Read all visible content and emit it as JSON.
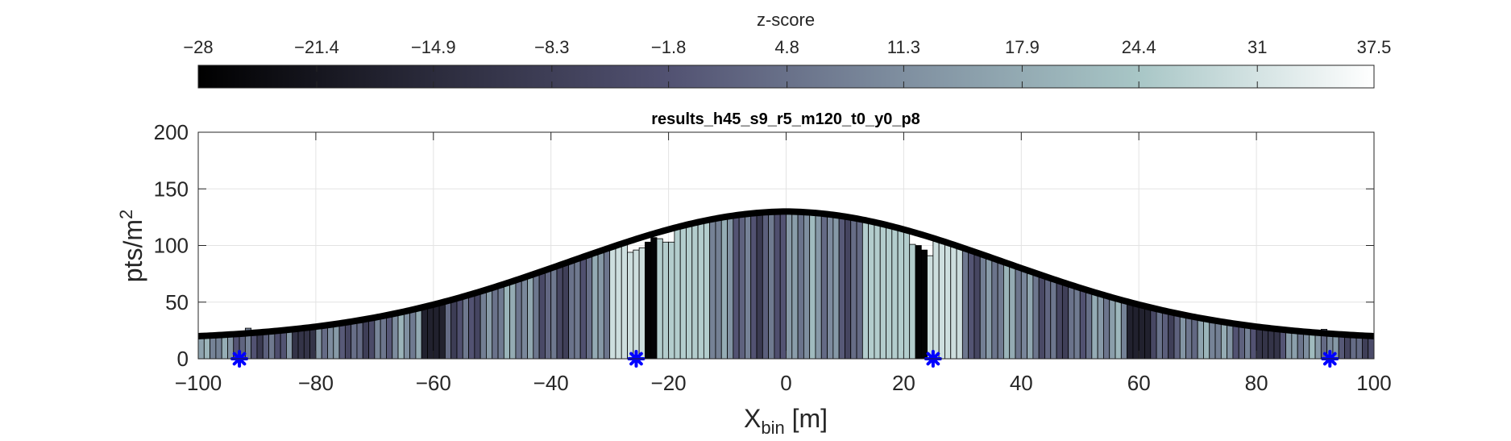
{
  "chart_data": {
    "type": "bar",
    "title": "results_h45_s9_r5_m120_t0_y0_p8",
    "xlabel": "X",
    "xlabel_subscript": "bin",
    "xlabel_unit": " [m]",
    "ylabel": "pts/m",
    "ylabel_superscript": "2",
    "xlim": [
      -100,
      100
    ],
    "ylim": [
      0,
      200
    ],
    "x_ticks": [
      -100,
      -80,
      -60,
      -40,
      -20,
      0,
      20,
      40,
      60,
      80,
      100
    ],
    "x_tick_labels": [
      "−100",
      "−80",
      "−60",
      "−40",
      "−20",
      "0",
      "20",
      "40",
      "60",
      "80",
      "100"
    ],
    "y_ticks": [
      0,
      50,
      100,
      150,
      200
    ],
    "y_tick_labels": [
      "0",
      "50",
      "100",
      "150",
      "200"
    ],
    "grid": true,
    "bin_width": 1,
    "bars_description": "one bar per 1 m bin; height follows the model curve with small deviations",
    "bars_x_start": -100,
    "bars_x_end": 99,
    "bar_height_overrides": [
      {
        "x": -92,
        "value": 27
      },
      {
        "x": -27,
        "value": 94
      },
      {
        "x": -26,
        "value": 96
      },
      {
        "x": -25,
        "value": 98
      },
      {
        "x": -24,
        "value": 103
      },
      {
        "x": -23,
        "value": 107
      },
      {
        "x": -22,
        "value": 106
      },
      {
        "x": -21,
        "value": 103
      },
      {
        "x": -20,
        "value": 103
      },
      {
        "x": 21,
        "value": 101
      },
      {
        "x": 22,
        "value": 100
      },
      {
        "x": 23,
        "value": 96
      },
      {
        "x": 24,
        "value": 91
      },
      {
        "x": 91,
        "value": 26
      }
    ],
    "bar_zscore_pattern": "dark (very negative) near ±23 m and ±60 m, light (positive) near ±28 m and ±17 m, mid elsewhere",
    "model_curve": {
      "type": "gaussian_plus_baseline",
      "peak_x": 0,
      "peak_value": 118,
      "value_at_x100": 20,
      "description": "thick black smooth curve"
    },
    "markers": {
      "symbol": "asterisk",
      "color": "#0000ff",
      "x": [
        -93,
        -25.5,
        25,
        92.5
      ],
      "y": [
        0,
        0,
        0,
        0
      ]
    },
    "colorbar": {
      "label": "z-score",
      "location": "top",
      "min": -28,
      "max": 37.5,
      "ticks": [
        -28,
        -21.4,
        -14.9,
        -8.3,
        -1.8,
        4.8,
        11.3,
        17.9,
        24.4,
        31,
        37.5
      ],
      "tick_labels": [
        "−28",
        "−21.4",
        "−14.9",
        "−8.3",
        "−1.8",
        "4.8",
        "11.3",
        "17.9",
        "24.4",
        "31",
        "37.5"
      ],
      "colormap": "bone",
      "colormap_stops": [
        "#000000",
        "#2b2b3c",
        "#525272",
        "#7f8fa0",
        "#a8c6c6",
        "#ffffff"
      ]
    },
    "colors": {
      "curve": "#000000",
      "bar_edge": "#000000",
      "grid": "#e3e3e3",
      "axis": "#262626",
      "marker": "#0000ff"
    }
  }
}
